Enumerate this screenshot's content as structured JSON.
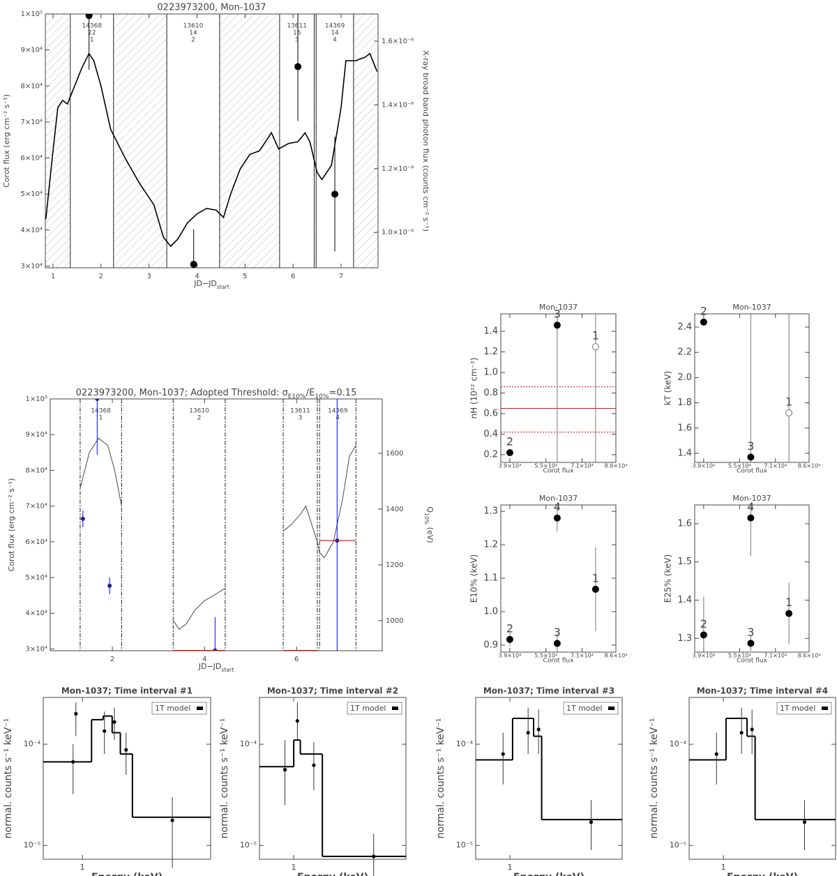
{
  "chart_data": [
    {
      "type": "line",
      "title": "0223973200, Mon-1037",
      "xlabel": [
        "JD−JD",
        "start"
      ],
      "ylabel": "Corot flux (erg cm⁻² s⁻¹)",
      "y2label": "X-ray broad band photon flux (counts cm⁻² s⁻¹)",
      "xlim": [
        0.84,
        7.77
      ],
      "xticks": [
        1,
        2,
        3,
        4,
        5,
        6,
        7
      ],
      "ylim": [
        29500,
        100000
      ],
      "yticks": [
        {
          "value": 30000,
          "label": "3×10⁴"
        },
        {
          "value": 40000,
          "label": "4×10⁴"
        },
        {
          "value": 50000,
          "label": "5×10⁴"
        },
        {
          "value": 60000,
          "label": "6×10⁴"
        },
        {
          "value": 70000,
          "label": "7×10⁴"
        },
        {
          "value": 80000,
          "label": "8×10⁴"
        },
        {
          "value": 90000,
          "label": "9×10⁴"
        },
        {
          "value": 100000,
          "label": "1×10⁵"
        }
      ],
      "y2lim": [
        8.89e-07,
        1.685e-06
      ],
      "y2ticks": [
        {
          "value": 1e-06,
          "label": "1.0×10⁻⁶"
        },
        {
          "value": 1.2e-06,
          "label": "1.2×10⁻⁶"
        },
        {
          "value": 1.4e-06,
          "label": "1.4×10⁻⁶"
        },
        {
          "value": 1.6e-06,
          "label": "1.6×10⁻⁶"
        }
      ],
      "hatched": true,
      "intervals": {
        "start": [
          1.36,
          3.37,
          5.72,
          6.48
        ],
        "end": [
          2.26,
          4.47,
          6.44,
          7.26
        ],
        "obsid": [
          14368,
          13610,
          13611,
          14369
        ],
        "counts": [
          22,
          14,
          16,
          14
        ],
        "number": [
          1,
          2,
          3,
          4
        ]
      },
      "series": [
        {
          "color": "#000000",
          "x": [
            0.85,
            1.0,
            1.1,
            1.2,
            1.3,
            1.45,
            1.6,
            1.75,
            1.85,
            2.0,
            2.2,
            2.5,
            2.8,
            3.1,
            3.3,
            3.45,
            3.6,
            3.8,
            4.0,
            4.2,
            4.4,
            4.55,
            4.7,
            4.9,
            5.1,
            5.3,
            5.45,
            5.55,
            5.7,
            5.9,
            6.1,
            6.25,
            6.35,
            6.5,
            6.6,
            6.8,
            7.0,
            7.1,
            7.3,
            7.5,
            7.6,
            7.75
          ],
          "values": [
            43000,
            62000,
            74000,
            76000,
            75000,
            80000,
            85000,
            89000,
            87000,
            80000,
            68000,
            60000,
            53000,
            47000,
            38000,
            35500,
            37500,
            42000,
            44500,
            46000,
            45500,
            43500,
            50000,
            57000,
            61000,
            62000,
            65000,
            67000,
            62500,
            64000,
            64500,
            67000,
            64500,
            56000,
            54000,
            58000,
            74000,
            87000,
            87000,
            88000,
            89000,
            84000
          ]
        },
        {
          "color": "#000000",
          "axis": "y2",
          "x": [
            1.75,
            3.93,
            6.1,
            6.87
          ],
          "values": [
            1.68e-06,
            9e-07,
            1.52e-06,
            1.12e-06
          ],
          "errors": [
            1.7e-07,
            1.1e-07,
            1.7e-07,
            1.8e-07
          ]
        }
      ]
    },
    {
      "type": "line",
      "title": [
        "0223973200, Mon-1037; Adopted Threshold: σ",
        "E10%",
        "/E",
        "10%",
        "=0.15"
      ],
      "xlabel": [
        "JD−JD",
        "start"
      ],
      "ylabel": "Corot flux (erg cm⁻² s⁻¹)",
      "y2label": [
        "Q",
        "10%",
        " (eV)"
      ],
      "xlim": [
        0.65,
        7.86
      ],
      "xticks": [
        2,
        4,
        6
      ],
      "ylim": [
        29500,
        100000
      ],
      "yticks": [
        {
          "value": 30000,
          "label": "3×10⁴"
        },
        {
          "value": 40000,
          "label": "4×10⁴"
        },
        {
          "value": 50000,
          "label": "5×10⁴"
        },
        {
          "value": 60000,
          "label": "6×10⁴"
        },
        {
          "value": 70000,
          "label": "7×10⁴"
        },
        {
          "value": 80000,
          "label": "8×10⁴"
        },
        {
          "value": 90000,
          "label": "9×10⁴"
        },
        {
          "value": 100000,
          "label": "1×10⁵"
        }
      ],
      "y2lim": [
        892,
        1795
      ],
      "y2ticks": [
        1000,
        1200,
        1400,
        1600
      ],
      "hatched": false,
      "intervals": {
        "start": [
          1.3,
          3.32,
          5.71,
          6.5
        ],
        "end": [
          2.2,
          4.45,
          6.45,
          7.29
        ],
        "obsid": [
          14368,
          13610,
          13611,
          14369
        ],
        "number": [
          1,
          2,
          3,
          4
        ]
      },
      "series": [
        {
          "color": "#333333",
          "x": [
            1.3,
            1.5,
            1.7,
            1.9,
            2.05,
            2.2,
            null,
            3.32,
            3.45,
            3.6,
            3.8,
            4.0,
            4.2,
            4.45,
            null,
            5.71,
            5.9,
            6.1,
            6.2,
            6.3,
            6.45,
            6.5,
            6.6,
            6.8,
            7.0,
            7.15,
            7.29
          ],
          "values": [
            75000,
            85000,
            89000,
            87000,
            80000,
            70000,
            null,
            38000,
            35500,
            37000,
            41000,
            43500,
            45000,
            47000,
            null,
            63000,
            65000,
            68000,
            70000,
            66000,
            60000,
            57000,
            55500,
            60000,
            72000,
            84000,
            87000
          ]
        },
        {
          "color": "#0000ff",
          "axis": "y2",
          "x": [
            1.36,
            1.67,
            1.94,
            4.23,
            6.88
          ],
          "values": [
            1365,
            1795,
            1125,
            893,
            1287
          ],
          "errors": [
            30,
            200,
            30,
            120,
            520
          ]
        }
      ],
      "levels": {
        "color": "#dd0000",
        "start": [
          3.32,
          5.71,
          6.5
        ],
        "end": [
          4.45,
          6.45,
          7.29
        ],
        "values": [
          893,
          893,
          1287
        ]
      }
    },
    {
      "type": "scatter",
      "title": "Mon-1037",
      "xlabel": "Corot flux",
      "ylabel": "nH (10²² cm⁻²)",
      "xlim": [
        35000,
        86000
      ],
      "xticks": [
        {
          "value": 39000,
          "label": "3.9×10⁴"
        },
        {
          "value": 55000,
          "label": "5.5×10⁴"
        },
        {
          "value": 71000,
          "label": "7.1×10⁴"
        },
        {
          "value": 86000,
          "label": "8.6×10⁴"
        }
      ],
      "ylim": [
        0.125,
        1.57
      ],
      "yticks": [
        0.2,
        0.4,
        0.6,
        0.8,
        {
          "value": 1,
          "label": "1.0"
        },
        1.2,
        1.4
      ],
      "series": [
        {
          "color": "#000000",
          "labels": [
            "2",
            "3",
            "1"
          ],
          "x": [
            39000,
            60000,
            77000
          ],
          "values": [
            0.22,
            1.46,
            1.25
          ],
          "errors": [
            0.02,
            1.5,
            1.5
          ],
          "open": [
            false,
            false,
            true
          ]
        }
      ],
      "fit": {
        "color": "#dd0000",
        "value": 0.65,
        "low": 0.42,
        "high": 0.86
      }
    },
    {
      "type": "scatter",
      "title": "Mon-1037",
      "xlabel": "Corot flux",
      "ylabel": "kT (keV)",
      "xlim": [
        35000,
        86000
      ],
      "xticks": [
        {
          "value": 39000,
          "label": "3.9×10⁴"
        },
        {
          "value": 55000,
          "label": "5.5×10⁴"
        },
        {
          "value": 71000,
          "label": "7.1×10⁴"
        },
        {
          "value": 86000,
          "label": "8.6×10⁴"
        }
      ],
      "ylim": [
        1.328,
        2.505
      ],
      "yticks": [
        1.4,
        1.6,
        1.8,
        {
          "value": 2,
          "label": "2.0"
        },
        2.2,
        2.4
      ],
      "series": [
        {
          "color": "#000000",
          "labels": [
            "2",
            "3",
            "1"
          ],
          "x": [
            39000,
            60000,
            77000
          ],
          "values": [
            2.44,
            1.37,
            1.72
          ],
          "errors": [
            0.02,
            1.5,
            1.0
          ],
          "open": [
            false,
            false,
            true
          ]
        }
      ]
    },
    {
      "type": "scatter",
      "title": "Mon-1037",
      "xlabel": "Corot flux",
      "ylabel": "E10% (keV)",
      "xlim": [
        35000,
        86000
      ],
      "xticks": [
        {
          "value": 39000,
          "label": "3.9×10⁴"
        },
        {
          "value": 55000,
          "label": "5.5×10⁴"
        },
        {
          "value": 71000,
          "label": "7.1×10⁴"
        },
        {
          "value": 86000,
          "label": "8.6×10⁴"
        }
      ],
      "ylim": [
        0.879,
        1.319
      ],
      "yticks": [
        0.9,
        {
          "value": 1,
          "label": "1.0"
        },
        1.1,
        1.2,
        1.3
      ],
      "series": [
        {
          "color": "#000000",
          "labels": [
            "2",
            "4",
            "3",
            "1"
          ],
          "x": [
            39000,
            60000,
            60000,
            77000
          ],
          "values": [
            0.917,
            1.28,
            0.905,
            1.067
          ],
          "errors": [
            0.02,
            0.04,
            0.03,
            0.125
          ],
          "open": [
            false,
            false,
            false,
            false
          ]
        }
      ]
    },
    {
      "type": "scatter",
      "title": "Mon-1037",
      "xlabel": "Corot flux",
      "ylabel": "E25% (keV)",
      "xlim": [
        35000,
        86000
      ],
      "xticks": [
        {
          "value": 39000,
          "label": "3.9×10⁴"
        },
        {
          "value": 55000,
          "label": "5.5×10⁴"
        },
        {
          "value": 71000,
          "label": "7.1×10⁴"
        },
        {
          "value": 86000,
          "label": "8.6×10⁴"
        }
      ],
      "ylim": [
        1.264,
        1.649
      ],
      "yticks": [
        1.3,
        1.4,
        1.5,
        1.6
      ],
      "series": [
        {
          "color": "#000000",
          "labels": [
            "2",
            "4",
            "3",
            "1"
          ],
          "x": [
            39000,
            60000,
            60000,
            77000
          ],
          "values": [
            1.309,
            1.615,
            1.287,
            1.365
          ],
          "errors": [
            0.1,
            0.1,
            0.02,
            0.08
          ],
          "open": [
            false,
            false,
            false,
            false
          ]
        }
      ]
    },
    {
      "type": "step",
      "title": "Mon-1037; Time interval #1",
      "xlabel": "Energy (keV)",
      "ylabel": "normal. counts s⁻¹ keV⁻¹",
      "xlog": true,
      "ylog": true,
      "xlim": [
        0.53,
        8
      ],
      "ylim": [
        7.3e-06,
        0.00029
      ],
      "xticks": [
        1
      ],
      "yticks": [
        {
          "value": 0.0001,
          "label": "10⁻⁴"
        },
        {
          "value": 1e-05,
          "label": "10⁻⁵"
        }
      ],
      "legend_loc": "upper right",
      "series": [
        {
          "name": "1T model",
          "color": "#000000",
          "bins": [
            0.53,
            1.16,
            1.4,
            1.62,
            1.85,
            2.25,
            8
          ],
          "values": [
            6.7e-05,
            0.000175,
            0.00019,
            0.00013,
            8e-05,
            1.9e-05
          ]
        }
      ],
      "points": {
        "x": [
          0.86,
          0.9,
          1.43,
          1.68,
          2.03,
          4.3
        ],
        "values": [
          6.7e-05,
          0.0002,
          0.000135,
          0.000166,
          8.8e-05,
          1.77e-05
        ],
        "low": [
          3.2e-05,
          0.00012,
          8e-05,
          0.00011,
          5e-05,
          6e-06
        ],
        "high": [
          0.0001,
          0.00026,
          0.00021,
          0.00023,
          0.00013,
          3e-05
        ]
      }
    },
    {
      "type": "step",
      "title": "Mon-1037; Time interval #2",
      "xlabel": "Energy (keV)",
      "ylabel": "normal. counts s⁻¹ keV⁻¹",
      "xlog": true,
      "ylog": true,
      "xlim": [
        0.53,
        8
      ],
      "ylim": [
        7.3e-06,
        0.00029
      ],
      "xticks": [
        1
      ],
      "yticks": [
        {
          "value": 0.0001,
          "label": "10⁻⁴"
        },
        {
          "value": 1e-05,
          "label": "10⁻⁵"
        }
      ],
      "legend_loc": "upper right",
      "series": [
        {
          "name": "1T model",
          "color": "#000000",
          "bins": [
            0.53,
            1.0,
            1.13,
            1.7,
            8
          ],
          "values": [
            6e-05,
            0.00011,
            8e-05,
            7.8e-06
          ]
        }
      ],
      "points": {
        "x": [
          0.85,
          1.07,
          1.45,
          4.4
        ],
        "values": [
          5.6e-05,
          0.00017,
          6.2e-05,
          7.8e-06
        ],
        "low": [
          2.5e-05,
          0.00011,
          3.5e-05,
          5e-06
        ],
        "high": [
          0.00011,
          0.00026,
          0.000105,
          1.3e-05
        ]
      }
    },
    {
      "type": "step",
      "title": "Mon-1037; Time interval #3",
      "xlabel": "Energy (keV)",
      "ylabel": "normal. counts s⁻¹ keV⁻¹",
      "xlog": true,
      "ylog": true,
      "xlim": [
        0.53,
        8
      ],
      "ylim": [
        7.3e-06,
        0.00029
      ],
      "xticks": [
        1
      ],
      "yticks": [
        {
          "value": 0.0001,
          "label": "10⁻⁴"
        },
        {
          "value": 1e-05,
          "label": "10⁻⁵"
        }
      ],
      "legend_loc": "upper right",
      "series": [
        {
          "name": "1T model",
          "color": "#000000",
          "bins": [
            0.53,
            1.05,
            1.55,
            1.8,
            8
          ],
          "values": [
            7e-05,
            0.00018,
            0.00012,
            1.8e-05
          ]
        }
      ],
      "points": {
        "x": [
          0.88,
          1.4,
          1.7,
          4.5
        ],
        "values": [
          8e-05,
          0.00013,
          0.00014,
          1.7e-05
        ],
        "low": [
          4e-05,
          8e-05,
          8e-05,
          9e-06
        ],
        "high": [
          0.00013,
          0.00023,
          0.00022,
          2.8e-05
        ]
      }
    },
    {
      "type": "step",
      "title": "Mon-1037; Time interval #4",
      "xlabel": "Energy (keV)",
      "ylabel": "normal. counts s⁻¹ keV⁻¹",
      "xlog": true,
      "ylog": true,
      "xlim": [
        0.53,
        8
      ],
      "ylim": [
        7.3e-06,
        0.00029
      ],
      "xticks": [
        1
      ],
      "yticks": [
        {
          "value": 0.0001,
          "label": "10⁻⁴"
        },
        {
          "value": 1e-05,
          "label": "10⁻⁵"
        }
      ],
      "legend_loc": "upper right",
      "series": [
        {
          "name": "1T model",
          "color": "#000000",
          "bins": [
            0.53,
            1.05,
            1.55,
            1.8,
            8
          ],
          "values": [
            7e-05,
            0.00018,
            0.00012,
            1.8e-05
          ]
        }
      ],
      "points": {
        "x": [
          0.88,
          1.4,
          1.7,
          4.5
        ],
        "values": [
          8e-05,
          0.00013,
          0.00014,
          1.7e-05
        ],
        "low": [
          4e-05,
          8e-05,
          8e-05,
          9e-06
        ],
        "high": [
          0.00013,
          0.00023,
          0.00022,
          2.8e-05
        ]
      }
    }
  ]
}
